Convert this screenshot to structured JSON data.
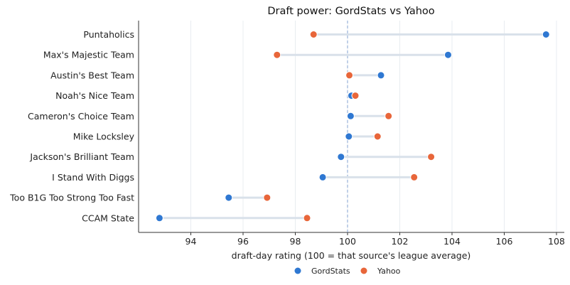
{
  "chart_data": {
    "type": "scatter",
    "subtype": "dumbbell",
    "title": "Draft power: GordStats vs Yahoo",
    "xlabel": "draft-day rating (100 = that source's league average)",
    "ylabel": "",
    "xlim": [
      92.0,
      108.3
    ],
    "xticks": [
      94,
      96,
      98,
      100,
      102,
      104,
      106,
      108
    ],
    "reference_line": 100,
    "grid": "vertical",
    "legend_position": "bottom-center",
    "categories": [
      "Puntaholics",
      "Max's Majestic Team",
      "Austin's Best Team",
      "Noah's Nice Team",
      "Cameron's Choice Team",
      "Mike Locksley",
      "Jackson's Brilliant Team",
      "I Stand With Diggs",
      "Too B1G Too Strong Too Fast",
      "CCAM State"
    ],
    "series": [
      {
        "name": "GordStats",
        "color": "#2f78d2",
        "values": [
          107.6,
          103.85,
          101.28,
          100.15,
          100.12,
          100.05,
          99.75,
          99.05,
          95.45,
          92.8
        ]
      },
      {
        "name": "Yahoo",
        "color": "#e8663a",
        "values": [
          98.7,
          97.3,
          100.07,
          100.3,
          101.57,
          101.15,
          103.2,
          102.55,
          96.92,
          98.45
        ]
      }
    ],
    "connector_color": "#d9e1ea",
    "reference_color": "#8eaad6",
    "grid_color": "#e8ecf0"
  }
}
